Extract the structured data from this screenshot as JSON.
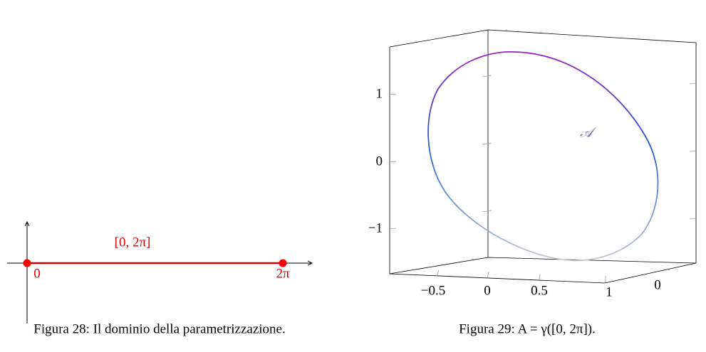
{
  "figures": [
    {
      "caption": "Figura 28: Il dominio della parametrizzazione.",
      "interval_label": "[0, 2π]",
      "start_label": "0",
      "end_label": "2π"
    },
    {
      "caption": "Figura 29: A = γ([0, 2π]).",
      "curve_label": "𝒜",
      "z_ticks": [
        "1",
        "0",
        "−1"
      ],
      "x_ticks": [
        "−0.5",
        "0",
        "0.5",
        "1"
      ],
      "y_ticks": [
        "0"
      ]
    }
  ]
}
